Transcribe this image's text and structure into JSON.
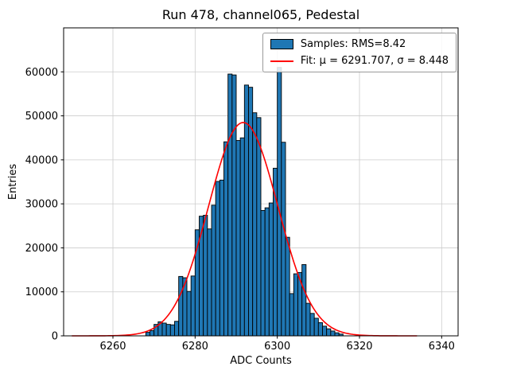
{
  "title": "Run 478, channel065, Pedestal",
  "xlabel": "ADC Counts",
  "ylabel": "Entries",
  "legend": {
    "samples_label": "Samples: RMS=8.42",
    "fit_label": "Fit: μ = 6291.707, σ = 8.448"
  },
  "chart_data": {
    "type": "bar",
    "subtype": "histogram",
    "title": "Run 478, channel065, Pedestal",
    "xlabel": "ADC Counts",
    "ylabel": "Entries",
    "xlim": [
      6248,
      6344
    ],
    "ylim": [
      0,
      70000
    ],
    "xticks": [
      6260,
      6280,
      6300,
      6320,
      6340
    ],
    "yticks": [
      0,
      10000,
      20000,
      30000,
      40000,
      50000,
      60000
    ],
    "grid": true,
    "legend_position": "upper right",
    "bar_color": "#1f77b4",
    "bar_edge_color": "#000000",
    "bin_start": 6268,
    "bin_width": 1,
    "counts": [
      800,
      1200,
      2600,
      3200,
      2900,
      2600,
      2500,
      3300,
      13500,
      13200,
      10100,
      13600,
      24100,
      27200,
      27400,
      24300,
      29700,
      35100,
      35400,
      44100,
      59500,
      59300,
      44400,
      45000,
      57000,
      56500,
      50700,
      49600,
      28500,
      29100,
      30200,
      38100,
      61000,
      44000,
      22400,
      9600,
      14100,
      14400,
      16200,
      7400,
      5100,
      4000,
      3000,
      2200,
      1600,
      1100,
      700,
      400
    ],
    "stats": {
      "rms": 8.42
    },
    "fit": {
      "type": "gaussian",
      "mu": 6291.707,
      "sigma": 8.448,
      "amplitude": 48500,
      "color": "#ff0000",
      "x_range": [
        6250,
        6334
      ]
    }
  }
}
